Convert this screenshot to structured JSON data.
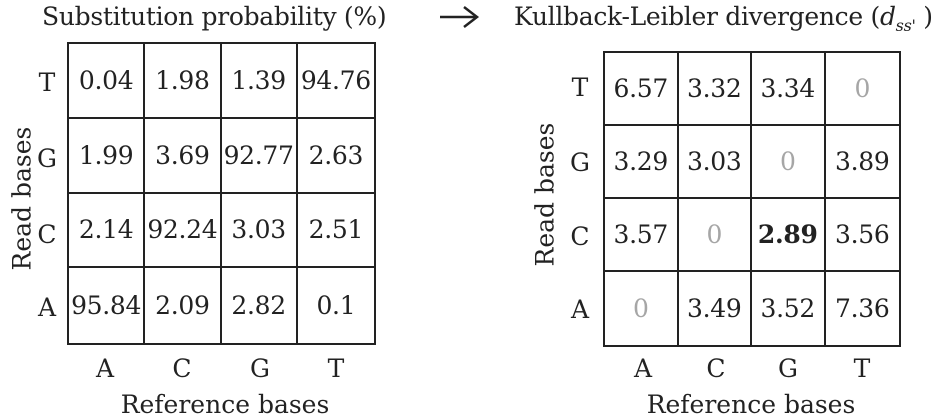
{
  "left": {
    "title": "Substitution probability (%)",
    "xlabel": "Reference bases",
    "ylabel": "Read bases",
    "columns": [
      "A",
      "C",
      "G",
      "T"
    ],
    "rows": [
      "T",
      "G",
      "C",
      "A"
    ],
    "cells": [
      [
        "0.04",
        "1.98",
        "1.39",
        "94.76"
      ],
      [
        "1.99",
        "3.69",
        "92.77",
        "2.63"
      ],
      [
        "2.14",
        "92.24",
        "3.03",
        "2.51"
      ],
      [
        "95.84",
        "2.09",
        "2.82",
        "0.1"
      ]
    ]
  },
  "arrow_icon": "right-arrow-icon",
  "right": {
    "title_main": "Kullback-Leibler divergence (",
    "title_var": "d",
    "title_sub": "ss'",
    "title_close": " )",
    "xlabel": "Reference bases",
    "ylabel": "Read bases",
    "columns": [
      "A",
      "C",
      "G",
      "T"
    ],
    "rows": [
      "T",
      "G",
      "C",
      "A"
    ],
    "cells": [
      [
        "6.57",
        "3.32",
        "3.34",
        "0"
      ],
      [
        "3.29",
        "3.03",
        "0",
        "3.89"
      ],
      [
        "3.57",
        "0",
        "2.89",
        "3.56"
      ],
      [
        "0",
        "3.49",
        "3.52",
        "7.36"
      ]
    ],
    "zero_color": "#a6a6a6",
    "highlight_cell": {
      "row": 2,
      "col": 2
    }
  }
}
